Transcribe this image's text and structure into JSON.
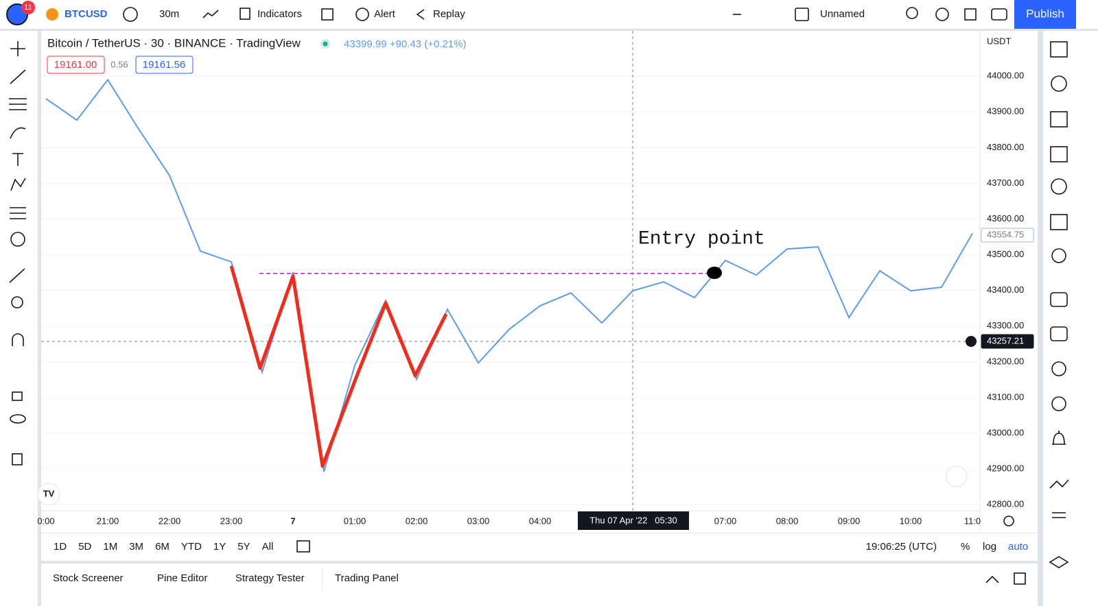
{
  "toolbar": {
    "badge": "11",
    "symbol": "BTCUSD",
    "interval": "30m",
    "indicators": "Indicators",
    "alert": "Alert",
    "replay": "Replay",
    "layout": "Unnamed",
    "publish": "Publish"
  },
  "legend": {
    "title": "Bitcoin / TetherUS · 30 · BINANCE · TradingView",
    "quote": "43399.99 +90.43 (+0.21%)",
    "bid": "19161.00",
    "spread": "0.56",
    "ask": "19161.56"
  },
  "chart_data": {
    "type": "line",
    "color": "#5b9cf0",
    "categories": [
      "0:00",
      null,
      "21:00",
      null,
      "22:00",
      null,
      "23:00",
      null,
      "7",
      null,
      "01:00",
      null,
      "02:00",
      null,
      "03:00",
      null,
      "04:00",
      null,
      null,
      null,
      null,
      null,
      "07:00",
      null,
      "08:00",
      null,
      "09:00",
      null,
      "10:00",
      null,
      "11:0"
    ],
    "values": [
      43937,
      43877,
      43990,
      43852,
      43722,
      43510,
      43480,
      43171,
      43451,
      42892,
      43190,
      43372,
      43151,
      43347,
      43197,
      43291,
      43357,
      43393,
      43309,
      43399,
      43424,
      43380,
      43484,
      43443,
      43516,
      43522,
      43324,
      43455,
      43399,
      43409,
      43560
    ],
    "ylim": [
      42783,
      44127
    ],
    "yticks": [
      {
        "value": 42800,
        "label": "42800.00"
      },
      {
        "value": 42900,
        "label": "42900.00"
      },
      {
        "value": 43000,
        "label": "43000.00"
      },
      {
        "value": 43100,
        "label": "43100.00"
      },
      {
        "value": 43200,
        "label": "43200.00"
      },
      {
        "value": 43300,
        "label": "43300.00"
      },
      {
        "value": 43400,
        "label": "43400.00"
      },
      {
        "value": 43500,
        "label": "43500.00"
      },
      {
        "value": 43600,
        "label": "43600.00"
      },
      {
        "value": 43700,
        "label": "43700.00"
      },
      {
        "value": 43800,
        "label": "43800.00"
      },
      {
        "value": 43900,
        "label": "43900.00"
      },
      {
        "value": 44000,
        "label": "44000.00"
      }
    ],
    "grid": true,
    "currency": "USDT",
    "annotation": "Entry point",
    "crosshair_label": "Thu 07 Apr '22   05:30",
    "price_markers": [
      {
        "value": 43554.75,
        "label": "43554.75"
      },
      {
        "value": 43257.21,
        "label": "43257.21"
      }
    ]
  },
  "bottom": {
    "ranges": [
      "1D",
      "5D",
      "1M",
      "3M",
      "6M",
      "YTD",
      "1Y",
      "5Y",
      "All"
    ],
    "time": "19:06:25 (UTC)",
    "percent": "%",
    "log": "log",
    "auto": "auto"
  },
  "tabs": [
    "Stock Screener",
    "Pine Editor",
    "Strategy Tester",
    "Trading Panel"
  ]
}
